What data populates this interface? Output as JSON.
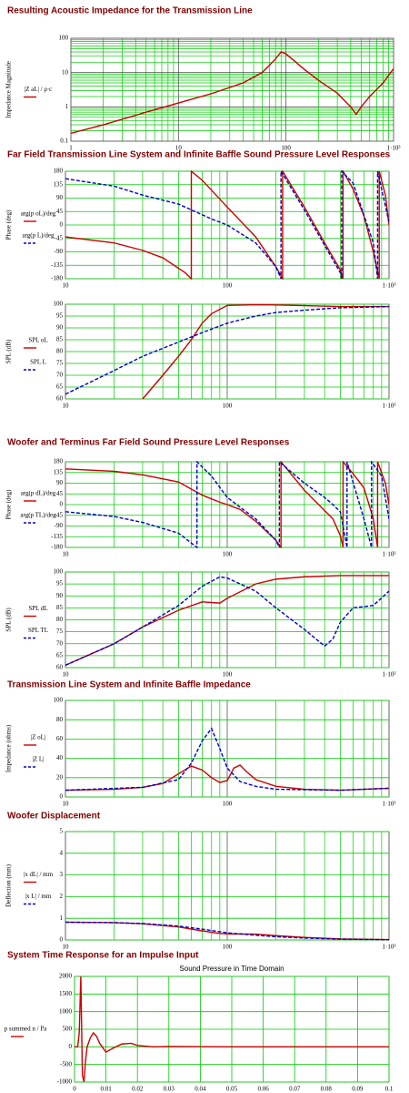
{
  "chart_data": [
    {
      "type": "line",
      "title": "Resulting Acoustic Impedance for the Transmission Line",
      "ylabel": "Impedance Magnitude",
      "xlog": true,
      "ylog": true,
      "grid": true,
      "minor_grid": true,
      "xlim": [
        1,
        1000
      ],
      "xticks": [
        1,
        10,
        100,
        {
          "value": 1000,
          "label": "1·10³"
        }
      ],
      "ylim": [
        0.1,
        100
      ],
      "yticks": [
        0.1,
        1,
        10,
        100
      ],
      "series": [
        {
          "name": "|Z aL| / ρ·c",
          "color": "#cc0000",
          "dash": false,
          "x": [
            1,
            2,
            5,
            10,
            20,
            40,
            60,
            80,
            90,
            100,
            150,
            200,
            300,
            400,
            450,
            500,
            600,
            800,
            1000
          ],
          "values": [
            0.17,
            0.3,
            0.7,
            1.3,
            2.4,
            5,
            10,
            25,
            40,
            35,
            12,
            6,
            2.5,
            1.0,
            0.6,
            1.0,
            2,
            5,
            13
          ]
        }
      ]
    },
    {
      "type": "line",
      "title": "Far Field Transmission Line System and Infinite Baffle Sound Pressure Level Responses",
      "ylabel": "Phase (deg)",
      "xlog": true,
      "ylog": false,
      "grid": true,
      "minor_grid": true,
      "xlim": [
        10,
        1000
      ],
      "xticks": [
        10,
        100,
        {
          "value": 1000,
          "label": "1·10³"
        }
      ],
      "ylim": [
        -180,
        180
      ],
      "yticks": [
        -180,
        -135,
        -90,
        -45,
        0,
        45,
        90,
        135,
        180
      ],
      "series": [
        {
          "name": "arg(p oL)/deg",
          "color": "#cc0000",
          "dash": false,
          "x": [
            10,
            20,
            30,
            40,
            55,
            60,
            60,
            70,
            100,
            150,
            200,
            220,
            220,
            300,
            400,
            500,
            520,
            520,
            600,
            700,
            800,
            870,
            870,
            950,
            1000
          ],
          "values": [
            -40,
            -60,
            -85,
            -110,
            -160,
            -180,
            180,
            150,
            60,
            -40,
            -140,
            -180,
            180,
            60,
            -60,
            -150,
            -180,
            180,
            120,
            30,
            -90,
            -180,
            180,
            100,
            0
          ]
        },
        {
          "name": "arg(p L)/deg",
          "color": "#0000cc",
          "dash": true,
          "x": [
            10,
            20,
            30,
            50,
            80,
            100,
            150,
            200,
            215,
            215,
            300,
            500,
            510,
            510,
            600,
            800,
            850,
            850,
            1000
          ],
          "values": [
            155,
            130,
            100,
            70,
            20,
            0,
            -60,
            -140,
            -180,
            180,
            50,
            -160,
            -180,
            180,
            140,
            -60,
            -180,
            180,
            10
          ]
        }
      ]
    },
    {
      "type": "line",
      "ylabel": "SPL (dB)",
      "xlog": true,
      "ylog": false,
      "grid": true,
      "minor_grid": true,
      "xlim": [
        10,
        1000
      ],
      "xticks": [
        10,
        100,
        {
          "value": 1000,
          "label": "1·10³"
        }
      ],
      "ylim": [
        60,
        100
      ],
      "yticks": [
        60,
        65,
        70,
        75,
        80,
        85,
        90,
        95,
        100
      ],
      "series": [
        {
          "name": "SPL oL",
          "color": "#cc0000",
          "dash": false,
          "x": [
            30,
            40,
            50,
            60,
            70,
            80,
            100,
            150,
            200,
            300,
            500,
            800,
            1000
          ],
          "values": [
            60,
            70,
            78,
            85,
            92,
            96,
            99.5,
            99.8,
            99.7,
            99.4,
            99,
            99,
            99
          ]
        },
        {
          "name": "SPL L",
          "color": "#0000cc",
          "dash": true,
          "x": [
            10,
            20,
            30,
            50,
            70,
            100,
            150,
            200,
            300,
            500,
            1000
          ],
          "values": [
            62,
            72,
            78,
            84,
            88,
            92,
            95,
            96.5,
            97.5,
            98.5,
            99
          ]
        }
      ]
    },
    {
      "type": "line",
      "title": "Woofer and Terminus Far Field Sound Pressure Level Responses",
      "ylabel": "Phase (deg)",
      "xlog": true,
      "ylog": false,
      "grid": true,
      "minor_grid": true,
      "xlim": [
        10,
        1000
      ],
      "xticks": [
        10,
        100,
        {
          "value": 1000,
          "label": "1·10³"
        }
      ],
      "ylim": [
        -180,
        180
      ],
      "yticks": [
        -180,
        -135,
        -90,
        -45,
        0,
        45,
        90,
        135,
        180
      ],
      "series": [
        {
          "name": "arg(p dL)/deg",
          "color": "#cc0000",
          "dash": false,
          "x": [
            10,
            20,
            30,
            50,
            70,
            90,
            100,
            120,
            150,
            200,
            215,
            215,
            300,
            450,
            500,
            520,
            520,
            600,
            700,
            800,
            850,
            850,
            950,
            1000
          ],
          "values": [
            150,
            140,
            125,
            95,
            40,
            10,
            0,
            -20,
            -70,
            -150,
            -180,
            180,
            60,
            -60,
            -130,
            -180,
            180,
            130,
            70,
            -60,
            -180,
            180,
            90,
            0
          ]
        },
        {
          "name": "arg(p TL)/deg",
          "color": "#0000cc",
          "dash": true,
          "x": [
            10,
            20,
            30,
            50,
            65,
            65,
            80,
            100,
            150,
            200,
            210,
            210,
            300,
            400,
            450,
            500,
            550,
            550,
            700,
            780,
            780,
            900,
            1000
          ],
          "values": [
            -30,
            -50,
            -75,
            -120,
            -180,
            180,
            120,
            30,
            -60,
            -150,
            -180,
            180,
            90,
            30,
            0,
            -30,
            -180,
            180,
            -60,
            -180,
            180,
            120,
            -60
          ]
        }
      ]
    },
    {
      "type": "line",
      "ylabel": "SPL (dB)",
      "xlog": true,
      "ylog": false,
      "grid": true,
      "minor_grid": true,
      "xlim": [
        10,
        1000
      ],
      "xticks": [
        10,
        100,
        {
          "value": 1000,
          "label": "1·10³"
        }
      ],
      "ylim": [
        60,
        100
      ],
      "yticks": [
        60,
        65,
        70,
        75,
        80,
        85,
        90,
        95,
        100
      ],
      "series": [
        {
          "name": "SPL dL",
          "color": "#cc0000",
          "dash": false,
          "x": [
            10,
            20,
            30,
            50,
            70,
            90,
            100,
            150,
            200,
            300,
            500,
            1000
          ],
          "values": [
            61,
            70,
            77,
            84,
            87.5,
            87,
            89,
            95,
            97,
            98,
            98.5,
            98.5
          ]
        },
        {
          "name": "SPL TL",
          "color": "#0000cc",
          "dash": true,
          "x": [
            10,
            20,
            30,
            50,
            70,
            90,
            100,
            150,
            200,
            300,
            400,
            450,
            500,
            600,
            800,
            1000
          ],
          "values": [
            61,
            70,
            77,
            86,
            94,
            98,
            97.5,
            92,
            85,
            76,
            69,
            72,
            79,
            85,
            86,
            92
          ]
        }
      ]
    },
    {
      "type": "line",
      "title": "Transmission Line System and Infinite Baffle Impedance",
      "ylabel": "Impedance (ohms)",
      "xlog": true,
      "ylog": false,
      "grid": true,
      "minor_grid": true,
      "xlim": [
        10,
        1000
      ],
      "xticks": [
        10,
        100,
        {
          "value": 1000,
          "label": "1·10³"
        }
      ],
      "ylim": [
        0,
        100
      ],
      "yticks": [
        0,
        20,
        40,
        60,
        80,
        100
      ],
      "series": [
        {
          "name": "|Z oL|",
          "color": "#cc0000",
          "dash": false,
          "x": [
            10,
            20,
            30,
            40,
            50,
            60,
            70,
            80,
            90,
            100,
            110,
            120,
            130,
            150,
            200,
            300,
            500,
            1000
          ],
          "values": [
            7,
            8,
            10,
            14,
            24,
            32,
            28,
            20,
            15,
            17,
            30,
            33,
            27,
            18,
            11,
            8,
            7,
            9
          ]
        },
        {
          "name": "|Z L|",
          "color": "#0000cc",
          "dash": true,
          "x": [
            10,
            30,
            50,
            60,
            70,
            80,
            90,
            100,
            120,
            150,
            200,
            500,
            1000
          ],
          "values": [
            7,
            10,
            18,
            35,
            58,
            71,
            50,
            30,
            16,
            11,
            8,
            7,
            9
          ]
        }
      ]
    },
    {
      "type": "line",
      "title": "Woofer Displacement",
      "ylabel": "Deflection (mm)",
      "xlog": true,
      "ylog": false,
      "grid": true,
      "minor_grid": true,
      "xlim": [
        10,
        1000
      ],
      "xticks": [
        10,
        100,
        {
          "value": 1000,
          "label": "1·10³"
        }
      ],
      "ylim": [
        0,
        5
      ],
      "yticks": [
        0,
        1,
        2,
        3,
        4,
        5
      ],
      "series": [
        {
          "name": "|x dL| / mm",
          "color": "#cc0000",
          "dash": false,
          "x": [
            10,
            20,
            30,
            50,
            70,
            90,
            100,
            150,
            200,
            300,
            500,
            1000
          ],
          "values": [
            0.82,
            0.8,
            0.75,
            0.6,
            0.42,
            0.3,
            0.28,
            0.27,
            0.2,
            0.12,
            0.05,
            0.02
          ]
        },
        {
          "name": "|x L| / mm",
          "color": "#0000cc",
          "dash": true,
          "x": [
            10,
            20,
            30,
            50,
            70,
            90,
            100,
            150,
            200,
            300,
            500,
            1000
          ],
          "values": [
            0.82,
            0.8,
            0.76,
            0.64,
            0.5,
            0.38,
            0.33,
            0.22,
            0.15,
            0.09,
            0.04,
            0.01
          ]
        }
      ]
    },
    {
      "type": "line",
      "title": "System Time Response for an Impulse Input",
      "subtitle": "Sound Pressure in Time Domain",
      "xlog": false,
      "ylog": false,
      "grid": true,
      "minor_grid": false,
      "xlim": [
        0,
        0.1
      ],
      "xticks": [
        0,
        0.01,
        0.02,
        0.03,
        0.04,
        0.05,
        0.06,
        0.07,
        0.08,
        0.09,
        0.1
      ],
      "ylim": [
        -1000,
        2000
      ],
      "yticks": [
        -1000,
        -500,
        0,
        500,
        1000,
        1500,
        2000
      ],
      "series": [
        {
          "name": "p summed n / Pa",
          "color": "#cc0000",
          "dash": false,
          "x": [
            0,
            0.001,
            0.0015,
            0.002,
            0.0025,
            0.003,
            0.0035,
            0.004,
            0.005,
            0.006,
            0.007,
            0.008,
            0.01,
            0.012,
            0.015,
            0.018,
            0.02,
            0.025,
            0.03,
            0.05,
            0.1
          ],
          "values": [
            0,
            0,
            400,
            2000,
            -800,
            -1000,
            -400,
            0,
            250,
            400,
            300,
            100,
            -150,
            -50,
            80,
            100,
            40,
            0,
            10,
            0,
            0
          ]
        }
      ]
    }
  ]
}
